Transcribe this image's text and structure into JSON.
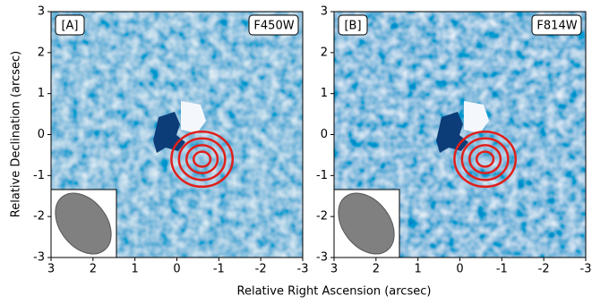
{
  "xlabel": "Relative Right Ascension (arcsec)",
  "ylabel": "Relative Declination (arcsec)",
  "chart_data": [
    {
      "type": "image",
      "label": "[A]",
      "filter": "F450W",
      "xlim": [
        3,
        -3
      ],
      "ylim": [
        -3,
        3
      ],
      "xticks": [
        3,
        2,
        1,
        0,
        -1,
        -2,
        -3
      ],
      "yticks": [
        3,
        2,
        1,
        0,
        -1,
        -2,
        -3
      ],
      "contour_center": [
        -0.6,
        -0.6
      ],
      "contour_radii": [
        0.2,
        0.37,
        0.55,
        0.73
      ],
      "contour_color": "#e0201b"
    },
    {
      "type": "image",
      "label": "[B]",
      "filter": "F814W",
      "xlim": [
        3,
        -3
      ],
      "ylim": [
        -3,
        3
      ],
      "xticks": [
        3,
        2,
        1,
        0,
        -1,
        -2,
        -3
      ],
      "yticks": [
        3,
        2,
        1,
        0,
        -1,
        -2,
        -3
      ],
      "contour_center": [
        -0.6,
        -0.6
      ],
      "contour_radii": [
        0.2,
        0.37,
        0.55,
        0.73
      ],
      "contour_color": "#e0201b"
    }
  ]
}
